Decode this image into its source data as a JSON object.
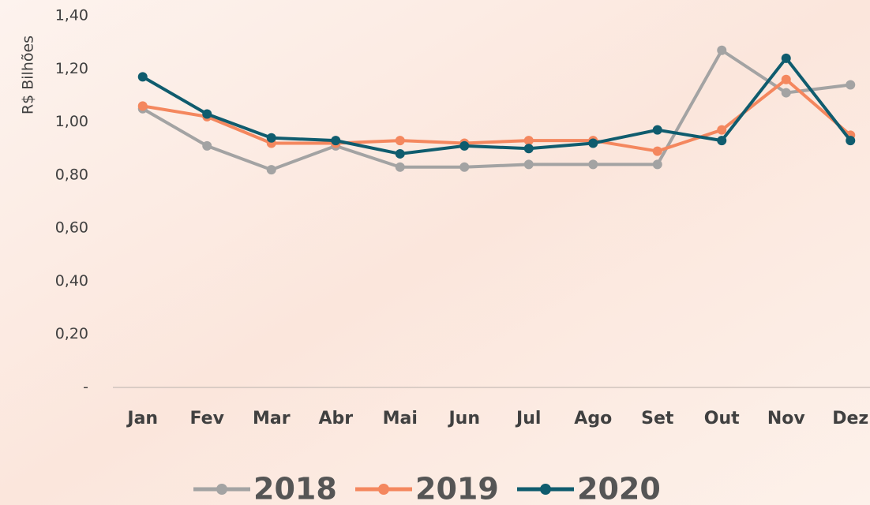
{
  "chart_data": {
    "type": "line",
    "ylabel": "R$ Bilhões",
    "categories": [
      "Jan",
      "Fev",
      "Mar",
      "Abr",
      "Mai",
      "Jun",
      "Jul",
      "Ago",
      "Set",
      "Out",
      "Nov",
      "Dez"
    ],
    "series": [
      {
        "name": "2018",
        "color": "#a3a3a3",
        "values": [
          1.05,
          0.91,
          0.82,
          0.91,
          0.83,
          0.83,
          0.84,
          0.84,
          0.84,
          1.27,
          1.11,
          1.14
        ]
      },
      {
        "name": "2019",
        "color": "#f4875e",
        "values": [
          1.06,
          1.02,
          0.92,
          0.92,
          0.93,
          0.92,
          0.93,
          0.93,
          0.89,
          0.97,
          1.16,
          0.95
        ]
      },
      {
        "name": "2020",
        "color": "#0f5c6e",
        "values": [
          1.17,
          1.03,
          0.94,
          0.93,
          0.88,
          0.91,
          0.9,
          0.92,
          0.97,
          0.93,
          1.24,
          0.93
        ]
      }
    ],
    "ylim": [
      0,
      1.4
    ],
    "yticks": [
      {
        "value": 0,
        "label": "-"
      },
      {
        "value": 0.2,
        "label": "0,20"
      },
      {
        "value": 0.4,
        "label": "0,40"
      },
      {
        "value": 0.6,
        "label": "0,60"
      },
      {
        "value": 0.8,
        "label": "0,80"
      },
      {
        "value": 1.0,
        "label": "1,00"
      },
      {
        "value": 1.2,
        "label": "1,20"
      },
      {
        "value": 1.4,
        "label": "1,40"
      }
    ],
    "grid": false,
    "legend": "bottom"
  }
}
